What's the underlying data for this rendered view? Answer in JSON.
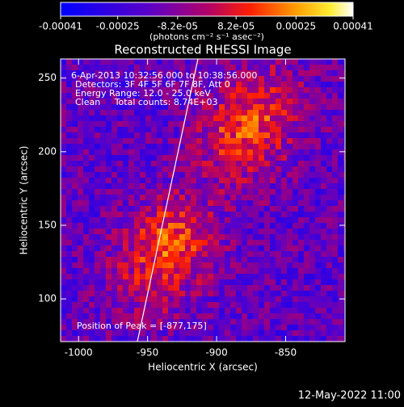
{
  "chart_data": {
    "type": "image",
    "title": "Reconstructed RHESSI Image",
    "xlabel": "Heliocentric X (arcsec)",
    "ylabel": "Heliocentric Y (arcsec)",
    "xlim": [
      -1013,
      -807
    ],
    "xticks": [
      -1000,
      -950,
      -900,
      -850
    ],
    "ylim": [
      71,
      263
    ],
    "yticks": [
      100,
      150,
      200,
      250
    ],
    "colorbar": {
      "lim": [
        -0.00041,
        0.00041
      ],
      "ticks": [
        -0.00041,
        -0.00025,
        {
          "value": -8.2e-05,
          "label": "-8.2e-05"
        },
        {
          "value": 8.2e-05,
          "label": "8.2e-05"
        },
        0.00025,
        0.00041
      ],
      "label": "(photons cm⁻² s⁻¹ asec⁻²)"
    },
    "annotations": [
      "6-Apr-2013 10:32:56.000 to 10:38:56.000",
      "Detectors: 3F 4F 5F 6F 7F 8F, Att 0",
      "Energy Range: 12.0 - 25.0 keV",
      "Clean     Total counts: 8.74E+03"
    ],
    "peak_label": "Position of Peak = [-877,175]",
    "footer": "12-May-2022 11:00"
  }
}
